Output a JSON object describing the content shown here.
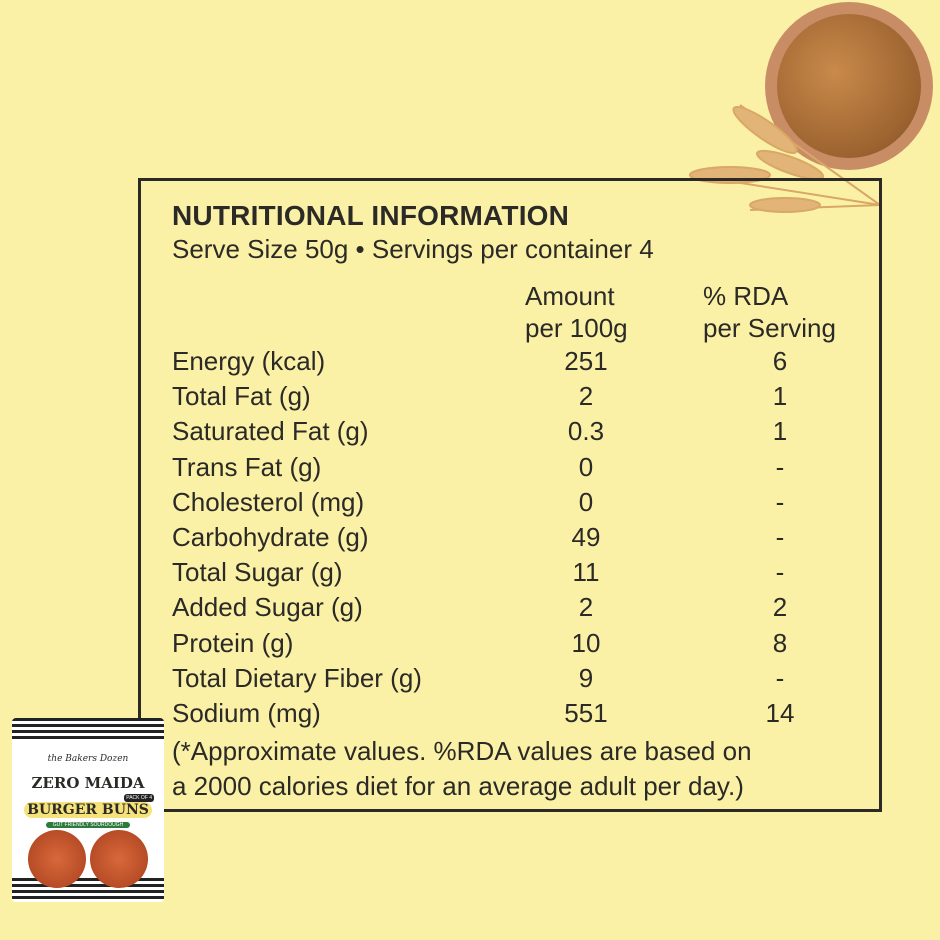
{
  "title": "NUTRITIONAL INFORMATION",
  "serving": "Serve Size 50g • Servings per container 4",
  "columns": {
    "amount": [
      "Amount",
      "per 100g"
    ],
    "rda": [
      "% RDA",
      "per Serving"
    ]
  },
  "rows": [
    {
      "label": "Energy (kcal)",
      "amount": "251",
      "rda": "6"
    },
    {
      "label": "Total Fat (g)",
      "amount": "2",
      "rda": "1"
    },
    {
      "label": "Saturated Fat (g)",
      "amount": "0.3",
      "rda": "1"
    },
    {
      "label": "Trans Fat (g)",
      "amount": "0",
      "rda": "-"
    },
    {
      "label": "Cholesterol (mg)",
      "amount": "0",
      "rda": "-"
    },
    {
      "label": "Carbohydrate (g)",
      "amount": "49",
      "rda": "-"
    },
    {
      "label": "Total Sugar (g)",
      "amount": "11",
      "rda": "-"
    },
    {
      "label": "Added Sugar (g)",
      "amount": "2",
      "rda": "2"
    },
    {
      "label": "Protein (g)",
      "amount": "10",
      "rda": "8"
    },
    {
      "label": "Total Dietary Fiber (g)",
      "amount": "9",
      "rda": "-"
    },
    {
      "label": "Sodium (mg)",
      "amount": "551",
      "rda": "14"
    }
  ],
  "note": [
    "(*Approximate values. %RDA values are based on",
    "a 2000 calories diet for an average adult per day.)"
  ],
  "package": {
    "brand": "the Bakers Dozen",
    "line1": "ZERO MAIDA",
    "line2": "BURGER BUNS",
    "pack": "PACK OF 4",
    "tag": "GUT FRIENDLY SOURDOUGH"
  },
  "colors": {
    "background": "#fbf1a6",
    "text": "#2b2a26"
  }
}
